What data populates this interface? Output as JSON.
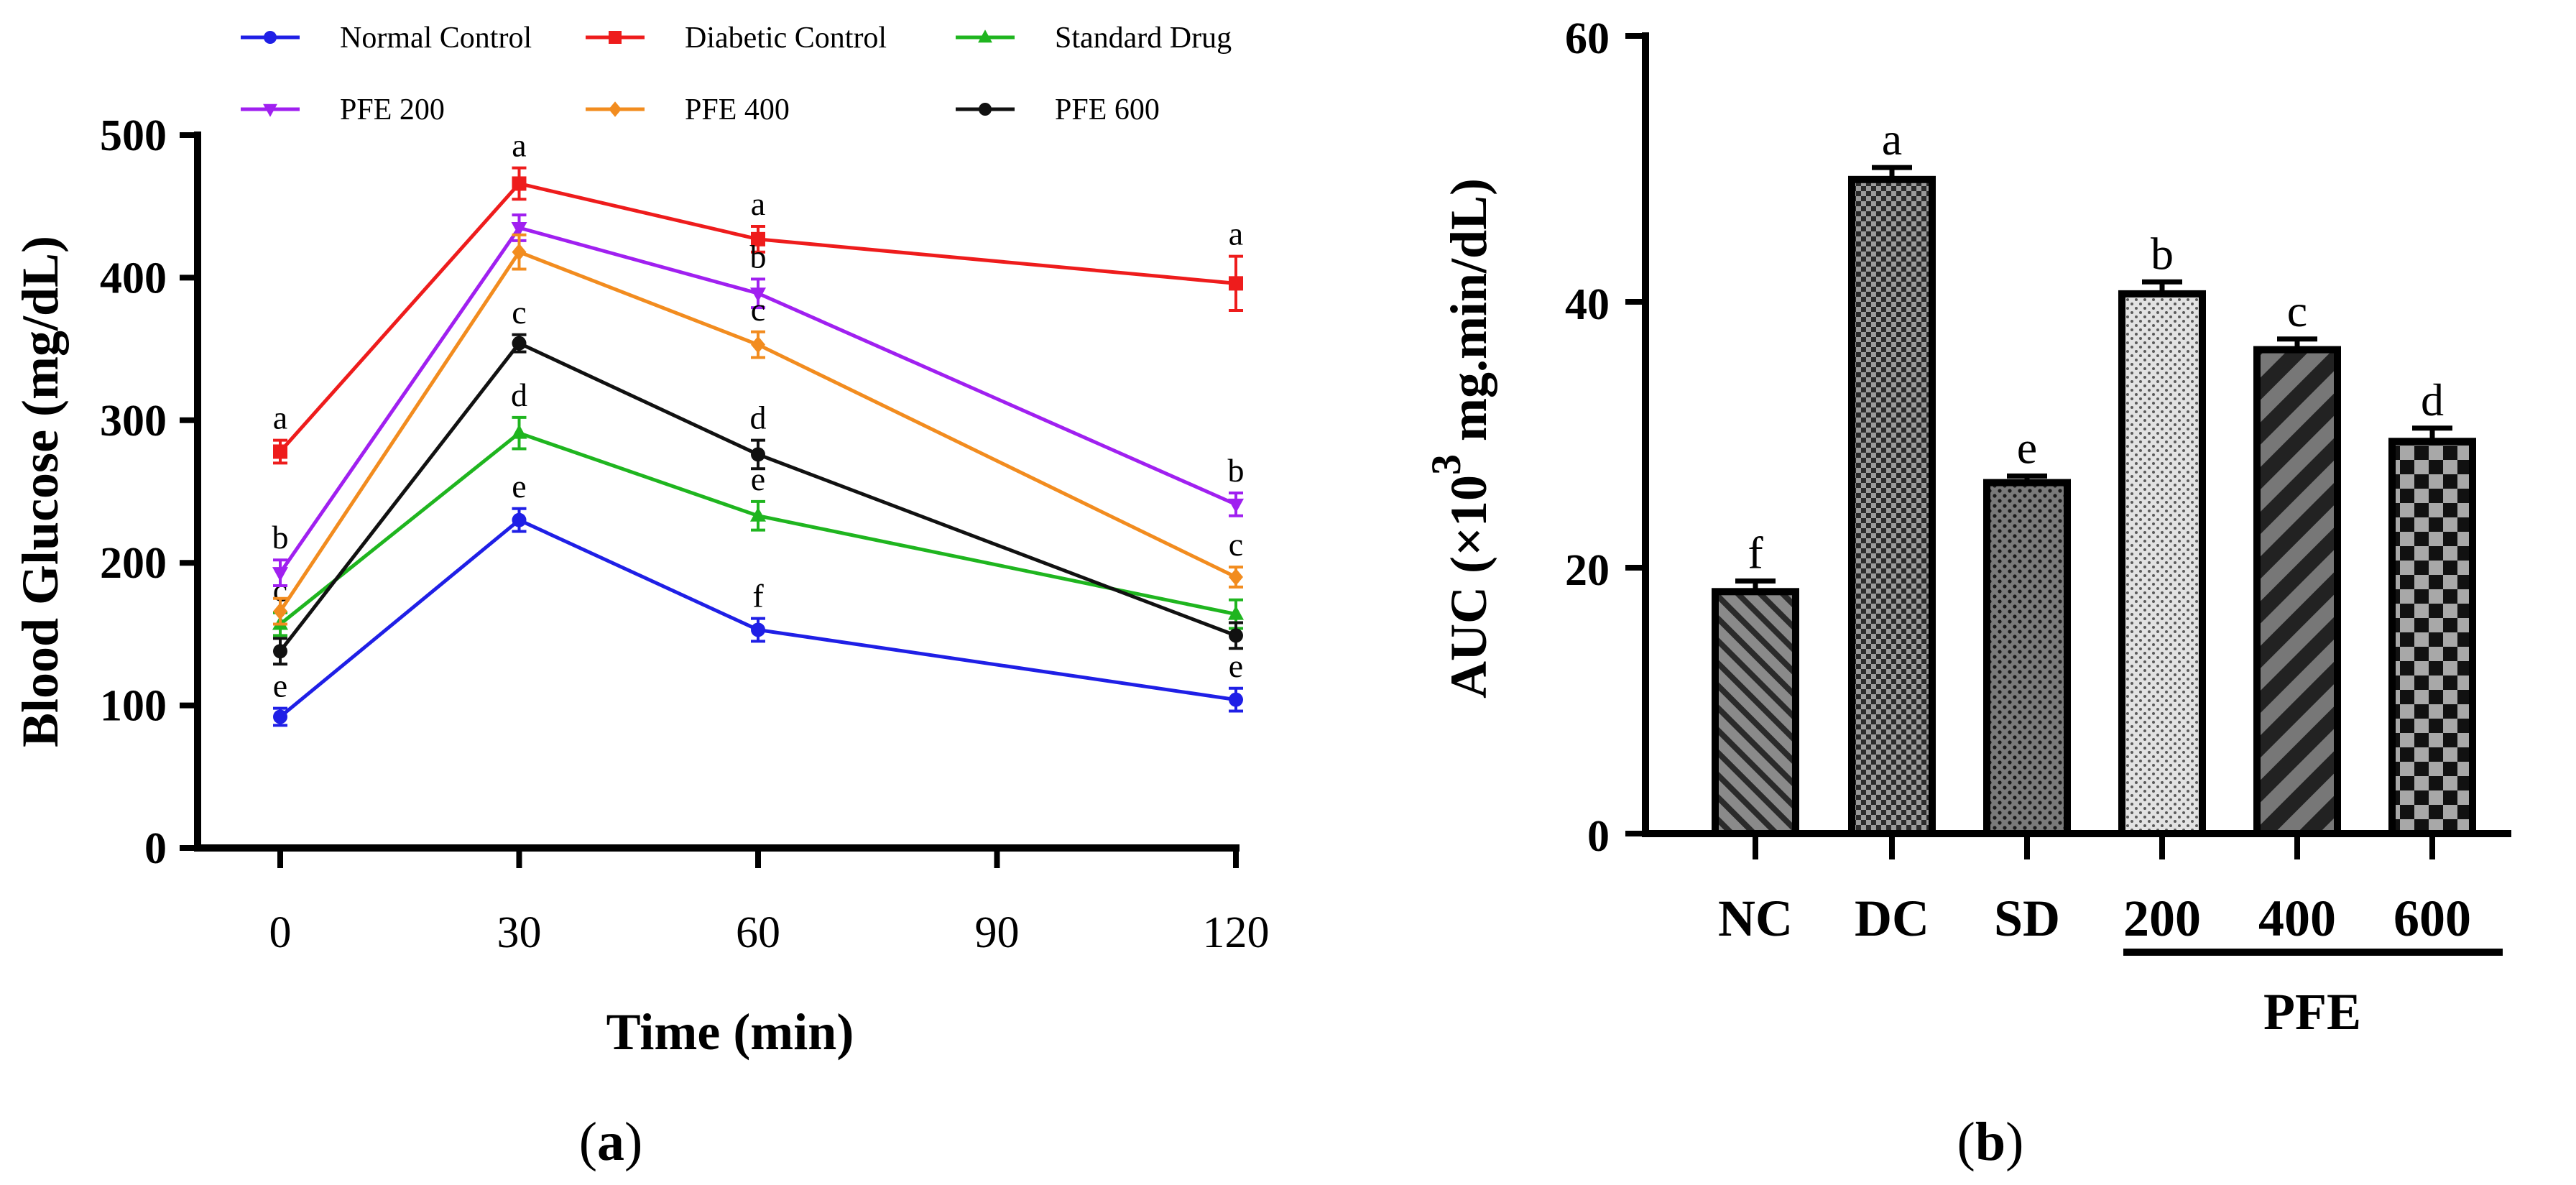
{
  "chart_data": [
    {
      "id": "a",
      "type": "line",
      "panel_label_open": "(",
      "panel_label_letter": "a",
      "panel_label_close": ")",
      "xlabel": "Time (min)",
      "ylabel": "Blood Glucose (mg/dL)",
      "x": [
        0,
        30,
        60,
        120
      ],
      "xticks": [
        0,
        30,
        60,
        90,
        120
      ],
      "xlim": [
        0,
        120
      ],
      "yticks": [
        0,
        100,
        200,
        300,
        400,
        500
      ],
      "ylim": [
        0,
        500
      ],
      "legend_position": "top",
      "series": [
        {
          "name": "Normal Control",
          "color": "#1f1fe6",
          "marker": "circle",
          "values": [
            92,
            230,
            153,
            104
          ],
          "errors": [
            6,
            8,
            8,
            8
          ],
          "letters": [
            "e",
            "e",
            "f",
            "e"
          ]
        },
        {
          "name": "Diabetic Control",
          "color": "#ee1c1c",
          "marker": "square",
          "values": [
            278,
            466,
            427,
            396
          ],
          "errors": [
            8,
            11,
            9,
            19
          ],
          "letters": [
            "a",
            "a",
            "a",
            "a"
          ]
        },
        {
          "name": "Standard Drug",
          "color": "#1fb51f",
          "marker": "triangle-up",
          "values": [
            157,
            291,
            233,
            164
          ],
          "errors": [
            8,
            11,
            10,
            10
          ],
          "letters": [
            "c",
            "d",
            "e",
            ""
          ]
        },
        {
          "name": "PFE 200",
          "color": "#a020f0",
          "marker": "triangle-down",
          "values": [
            193,
            435,
            389,
            241
          ],
          "errors": [
            9,
            9,
            10,
            8
          ],
          "letters": [
            "b",
            "",
            "b",
            "b"
          ]
        },
        {
          "name": "PFE 400",
          "color": "#f28c1f",
          "marker": "diamond",
          "values": [
            166,
            418,
            353,
            190
          ],
          "errors": [
            9,
            12,
            9,
            7
          ],
          "letters": [
            "",
            "",
            "c",
            "c"
          ]
        },
        {
          "name": "PFE 600",
          "color": "#111111",
          "marker": "circle",
          "values": [
            138,
            354,
            276,
            149
          ],
          "errors": [
            9,
            6,
            10,
            9
          ],
          "letters": [
            "",
            "c",
            "d",
            ""
          ]
        }
      ]
    },
    {
      "id": "b",
      "type": "bar",
      "panel_label_open": "(",
      "panel_label_letter": "b",
      "panel_label_close": ")",
      "ylabel_prefix": "AUC (×10",
      "ylabel_sup": "3",
      "ylabel_suffix": " mg.min/dL)",
      "categories": [
        "NC",
        "DC",
        "SD",
        "200",
        "400",
        "600"
      ],
      "values": [
        18.2,
        49.2,
        26.4,
        40.6,
        36.4,
        29.5
      ],
      "errors": [
        0.8,
        0.9,
        0.5,
        0.9,
        0.8,
        1.0
      ],
      "letters": [
        "f",
        "a",
        "e",
        "b",
        "c",
        "d"
      ],
      "patterns": [
        "diag-stripe-light",
        "dense-check",
        "dots",
        "speckle-light",
        "diag-stripe-bold",
        "checkerboard"
      ],
      "group_label": "PFE",
      "yticks": [
        0,
        20,
        40,
        60
      ],
      "ylim": [
        0,
        60
      ]
    }
  ]
}
